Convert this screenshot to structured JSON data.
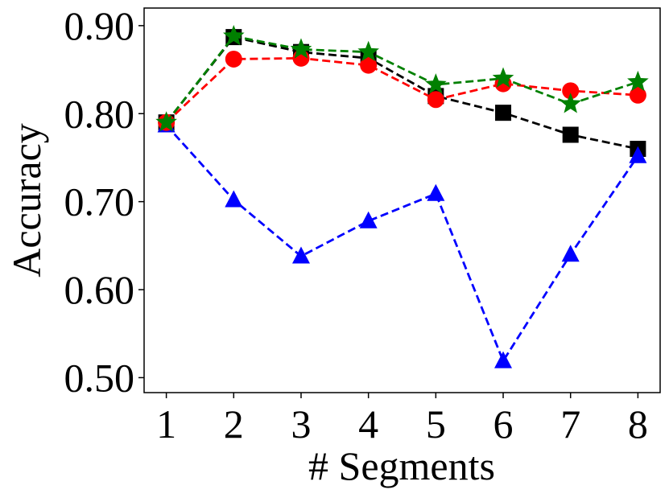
{
  "chart_data": {
    "type": "line",
    "title": "",
    "xlabel": "# Segments",
    "ylabel": "Accuracy",
    "x": [
      1,
      2,
      3,
      4,
      5,
      6,
      7,
      8
    ],
    "x_tick_labels": [
      "1",
      "2",
      "3",
      "4",
      "5",
      "6",
      "7",
      "8"
    ],
    "y_ticks": [
      0.5,
      0.6,
      0.7,
      0.8,
      0.9
    ],
    "y_tick_labels": [
      "0.50",
      "0.60",
      "0.70",
      "0.80",
      "0.90"
    ],
    "xlim": [
      0.67,
      8.33
    ],
    "ylim": [
      0.483,
      0.92
    ],
    "grid": false,
    "legend": "none",
    "series": [
      {
        "name": "square-series",
        "color": "#000000",
        "marker": "square",
        "values": [
          0.79,
          0.887,
          0.87,
          0.863,
          0.82,
          0.801,
          0.776,
          0.76
        ]
      },
      {
        "name": "triangle-series",
        "color": "#0000ff",
        "marker": "triangle",
        "values": [
          0.787,
          0.702,
          0.638,
          0.678,
          0.709,
          0.519,
          0.64,
          0.752
        ]
      },
      {
        "name": "circle-series",
        "color": "#ff0000",
        "marker": "circle",
        "values": [
          0.79,
          0.862,
          0.863,
          0.855,
          0.816,
          0.834,
          0.826,
          0.821
        ]
      },
      {
        "name": "star-series",
        "color": "#008000",
        "marker": "star",
        "values": [
          0.79,
          0.888,
          0.873,
          0.87,
          0.833,
          0.84,
          0.811,
          0.836
        ]
      }
    ]
  }
}
